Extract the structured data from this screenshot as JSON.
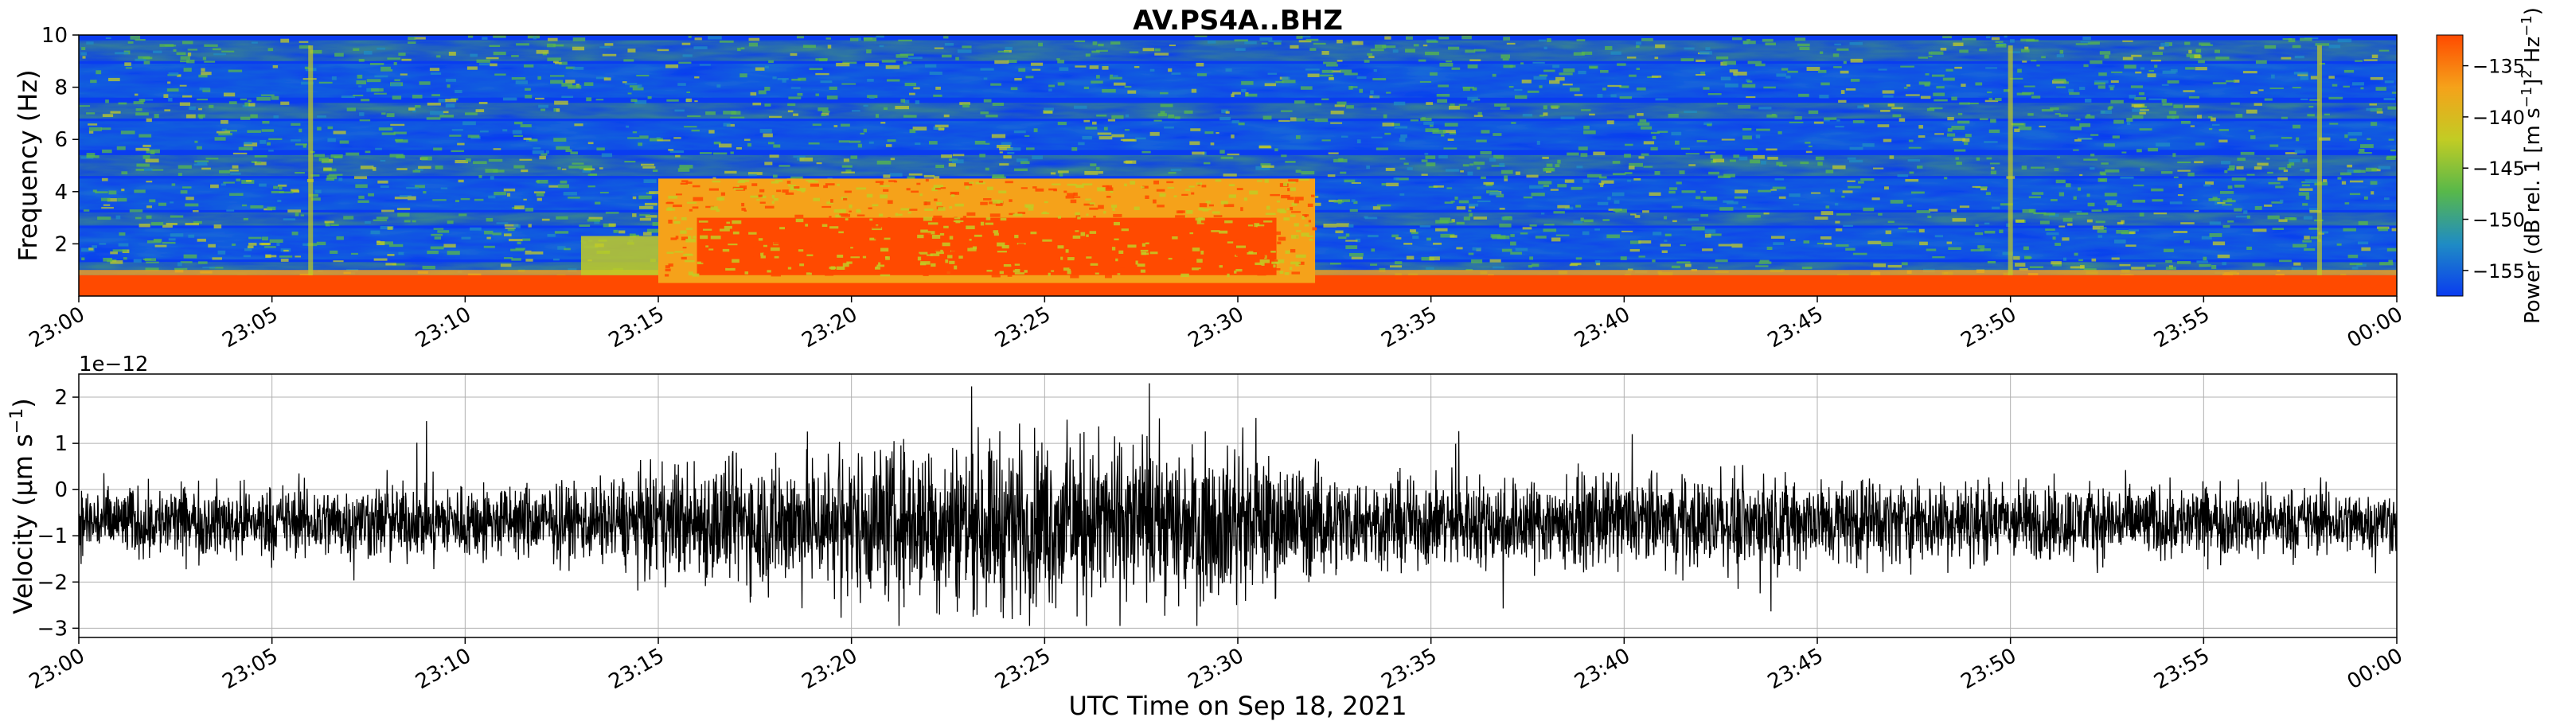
{
  "chart_data": [
    {
      "type": "heatmap",
      "title": "AV.PS4A..BHZ",
      "ylabel": "Frequency (Hz)",
      "xlabel": "",
      "x_start": "23:00",
      "x_end": "00:00",
      "x_ticks": [
        "23:00",
        "23:05",
        "23:10",
        "23:15",
        "23:20",
        "23:25",
        "23:30",
        "23:35",
        "23:40",
        "23:45",
        "23:50",
        "23:55",
        "00:00"
      ],
      "ylim": [
        0,
        10
      ],
      "y_ticks": [
        "2",
        "4",
        "6",
        "8",
        "10"
      ],
      "colorbar": {
        "label_main": "Power (dB rel. 1 [m s",
        "label_sup1": "−1",
        "label_mid": "]",
        "label_sup2": "2",
        "label_hz": " Hz",
        "label_sup3": "−1",
        "label_end": ")",
        "range": [
          -157.5,
          -132
        ],
        "ticks": [
          "−135",
          "−140",
          "−145",
          "−150",
          "−155"
        ],
        "colormap": [
          "#0a3cf0",
          "#1f8cc4",
          "#58b84a",
          "#c2cc24",
          "#f5a21a",
          "#ff4a00"
        ]
      },
      "features": [
        {
          "label": "low-frequency band",
          "freq_hz": [
            0,
            0.8
          ],
          "power_db": -133
        },
        {
          "label": "strong event",
          "time": [
            "23:15",
            "23:32"
          ],
          "freq_hz": [
            0.5,
            4.5
          ],
          "power_db": -134
        },
        {
          "label": "narrow vertical streaks",
          "times": [
            "23:06",
            "23:50",
            "23:58"
          ]
        }
      ]
    },
    {
      "type": "line",
      "title": "",
      "xlabel": "UTC Time on Sep 18, 2021",
      "ylabel_main": "Velocity (µm s",
      "ylabel_sup": "−1",
      "ylabel_end": ")",
      "offset_text": "1e−12",
      "x_ticks": [
        "23:00",
        "23:05",
        "23:10",
        "23:15",
        "23:20",
        "23:25",
        "23:30",
        "23:35",
        "23:40",
        "23:45",
        "23:50",
        "23:55",
        "00:00"
      ],
      "ylim": [
        -3.2,
        2.5
      ],
      "y_ticks": [
        "2",
        "1",
        "0",
        "−1",
        "−2",
        "−3"
      ],
      "grid": true,
      "series": [
        {
          "color": "#000000",
          "mean": -0.7,
          "amplitude_envelope": [
            {
              "minute": 0,
              "amp": 0.55
            },
            {
              "minute": 13,
              "amp": 0.6
            },
            {
              "minute": 16,
              "amp": 0.95
            },
            {
              "minute": 24,
              "amp": 1.35
            },
            {
              "minute": 30,
              "amp": 1.15
            },
            {
              "minute": 33,
              "amp": 0.7
            },
            {
              "minute": 44,
              "amp": 0.7
            },
            {
              "minute": 60,
              "amp": 0.5
            }
          ],
          "peak_min": -2.95,
          "peak_max": 2.3
        }
      ]
    }
  ]
}
